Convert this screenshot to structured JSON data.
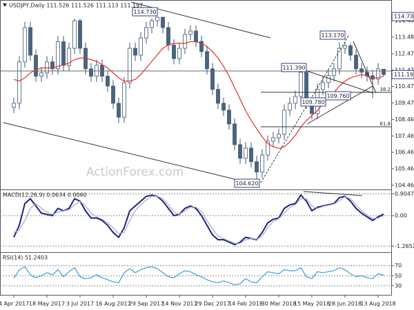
{
  "chart_data": [
    {
      "type": "candlestick",
      "title": "USDJPY,Daily 111.526 111.526 111.113 111.197",
      "categories": [
        "4 Apr 2017",
        null,
        null,
        null,
        null,
        null,
        "18 May 2017",
        null,
        null,
        null,
        null,
        null,
        "3 Jul 2017",
        null,
        null,
        null,
        null,
        null,
        "16 Aug 2017",
        null,
        null,
        null,
        null,
        null,
        "29 Sep 2017",
        null,
        null,
        null,
        null,
        null,
        "14 Nov 2017",
        null,
        null,
        null,
        null,
        null,
        "29 Dec 2017",
        null,
        null,
        null,
        null,
        null,
        "14 Feb 2018",
        null,
        null,
        null,
        null,
        null,
        "30 Mar 2018",
        null,
        null,
        null,
        null,
        null,
        "15 May 2018",
        null,
        null,
        null,
        null,
        null,
        "28 Jun 2018",
        null,
        null,
        null,
        null,
        null,
        "13 Aug 2018",
        null
      ],
      "open": [
        109.2,
        109.45,
        111.97,
        114.06,
        112.38,
        111.1,
        111.3,
        111.97,
        111.55,
        113.2,
        111.76,
        112.8,
        114.48,
        112.8,
        111.55,
        111.1,
        111.76,
        111.1,
        110.5,
        109.45,
        108.6,
        110.7,
        112.8,
        112.38,
        113.43,
        114.06,
        114.48,
        114.69,
        114.06,
        113.0,
        112.17,
        112.8,
        113.64,
        113.85,
        113.22,
        112.6,
        111.55,
        110.3,
        109.45,
        109.03,
        108.19,
        106.93,
        106.1,
        106.72,
        105.89,
        105.26,
        106.3,
        107.14,
        107.35,
        107.56,
        109.03,
        109.45,
        109.87,
        111.34,
        109.45,
        108.82,
        110.29,
        110.71,
        111.13,
        111.55,
        112.8,
        112.95,
        112.38,
        111.55,
        111.34,
        111.13,
        110.92,
        111.526
      ],
      "high": [
        109.8,
        112.32,
        114.41,
        114.41,
        112.73,
        111.65,
        112.32,
        112.32,
        113.55,
        113.55,
        113.15,
        114.6,
        114.6,
        113.15,
        111.9,
        112.11,
        112.11,
        111.45,
        110.85,
        109.8,
        111.05,
        113.15,
        113.15,
        113.78,
        114.41,
        114.6,
        114.73,
        114.7,
        114.41,
        113.35,
        113.15,
        113.99,
        114.2,
        114.2,
        113.57,
        112.95,
        111.9,
        110.65,
        109.8,
        109.38,
        108.54,
        107.28,
        107.07,
        107.07,
        106.24,
        106.65,
        107.49,
        107.7,
        107.91,
        109.38,
        109.8,
        110.22,
        111.39,
        111.39,
        109.8,
        110.64,
        111.06,
        111.48,
        111.9,
        113.15,
        113.17,
        113.1,
        112.73,
        111.9,
        111.69,
        111.48,
        111.9,
        111.526
      ],
      "low": [
        108.85,
        109.1,
        111.62,
        112.03,
        110.75,
        110.75,
        110.95,
        111.2,
        111.2,
        111.41,
        111.41,
        112.45,
        112.45,
        111.2,
        110.75,
        110.75,
        110.75,
        110.15,
        109.1,
        108.25,
        108.25,
        110.35,
        112.03,
        112.03,
        113.08,
        113.71,
        114.13,
        113.71,
        112.65,
        111.82,
        111.82,
        112.45,
        113.29,
        112.87,
        112.25,
        111.2,
        109.95,
        109.1,
        108.68,
        107.84,
        106.58,
        105.75,
        105.75,
        105.54,
        104.62,
        104.91,
        105.95,
        106.79,
        107.0,
        107.21,
        108.68,
        109.1,
        109.52,
        109.1,
        108.47,
        108.47,
        109.94,
        110.36,
        110.78,
        111.2,
        112.45,
        112.03,
        111.2,
        110.99,
        110.78,
        109.76,
        110.57,
        111.113
      ],
      "close": [
        109.45,
        111.97,
        114.06,
        112.38,
        111.1,
        111.3,
        111.97,
        111.55,
        113.2,
        111.76,
        112.8,
        114.48,
        112.8,
        111.55,
        111.1,
        111.76,
        111.1,
        110.5,
        109.45,
        108.6,
        110.7,
        112.8,
        112.38,
        113.43,
        114.06,
        114.48,
        114.69,
        114.06,
        113.0,
        112.17,
        112.8,
        113.64,
        113.85,
        113.22,
        112.6,
        111.55,
        110.3,
        109.45,
        109.03,
        108.19,
        106.93,
        106.1,
        106.72,
        105.89,
        105.26,
        106.3,
        107.14,
        107.35,
        107.56,
        109.03,
        109.45,
        109.87,
        111.34,
        109.45,
        108.82,
        110.29,
        110.71,
        111.13,
        111.55,
        112.8,
        112.95,
        112.38,
        111.55,
        111.34,
        111.13,
        110.92,
        111.55,
        111.197
      ],
      "up_color": "#ffffff",
      "down_color": "#4a6480",
      "candle_stroke": "#3d5670",
      "series": [
        {
          "color": "#e0302a",
          "values": [
            110.9,
            110.8,
            111.0,
            111.3,
            111.5,
            111.6,
            111.6,
            111.6,
            111.7,
            111.8,
            111.9,
            112.1,
            112.2,
            112.2,
            112.1,
            112.0,
            111.8,
            111.6,
            111.3,
            111.0,
            110.8,
            110.8,
            110.9,
            111.2,
            111.6,
            112.0,
            112.4,
            112.8,
            113.0,
            113.1,
            113.1,
            113.1,
            113.2,
            113.2,
            113.1,
            112.9,
            112.6,
            112.2,
            111.7,
            111.1,
            110.4,
            109.7,
            109.0,
            108.4,
            107.9,
            107.4,
            107.0,
            106.8,
            106.7,
            106.8,
            107.1,
            107.5,
            108.0,
            108.4,
            108.7,
            109.0,
            109.4,
            109.8,
            110.1,
            110.5,
            110.8,
            111.0,
            111.1,
            111.2,
            111.1,
            111.0,
            111.0,
            111.1
          ]
        }
      ],
      "ylim": [
        104.2,
        115.74
      ],
      "yticks": [
        {
          "value": 104.46,
          "label": "104.460"
        },
        {
          "value": 105.46,
          "label": "105.460"
        },
        {
          "value": 106.46,
          "label": "106.460"
        },
        {
          "value": 107.46,
          "label": "107.460"
        },
        {
          "value": 108.46,
          "label": "108.460"
        },
        {
          "value": 109.47,
          "label": "109.470"
        },
        {
          "value": 110.47,
          "label": "110.470"
        },
        {
          "value": 111.47,
          "label": "111.470"
        },
        {
          "value": 112.47,
          "label": "112.470"
        },
        {
          "value": 113.48,
          "label": "113.480"
        },
        {
          "value": 114.48,
          "label": "114.480"
        }
      ],
      "grid": false,
      "highlight_labels": [
        {
          "value": 114.73,
          "label": "114.730"
        },
        {
          "value": 111.197,
          "label": "111.197"
        }
      ],
      "annotations": [
        "114.730",
        "113.170",
        "111.390",
        "109.780",
        "109.760",
        "104.620",
        "38.2",
        "61.8"
      ],
      "watermark": "ActionForex.com"
    },
    {
      "type": "line",
      "title": "MACD(12,26,9) 0.0634 0.0060",
      "series": [
        {
          "color": "#1a237e",
          "values": [
            -0.9,
            -0.4,
            0.5,
            0.7,
            0.4,
            0.1,
            0.05,
            0.0,
            0.3,
            0.2,
            0.3,
            0.7,
            0.6,
            0.2,
            -0.1,
            -0.1,
            -0.2,
            -0.4,
            -0.7,
            -0.9,
            -0.5,
            0.2,
            0.4,
            0.6,
            0.8,
            0.85,
            0.8,
            0.6,
            0.3,
            0.0,
            0.05,
            0.3,
            0.4,
            0.3,
            0.0,
            -0.4,
            -0.8,
            -1.0,
            -1.0,
            -1.1,
            -1.2,
            -1.1,
            -0.9,
            -0.95,
            -1.0,
            -0.7,
            -0.3,
            -0.15,
            -0.1,
            0.3,
            0.45,
            0.5,
            0.85,
            0.6,
            0.2,
            0.35,
            0.4,
            0.45,
            0.5,
            0.75,
            0.8,
            0.6,
            0.3,
            0.1,
            -0.05,
            -0.2,
            -0.05,
            0.0634
          ]
        },
        {
          "color": "#a6a6c8",
          "values": [
            -0.7,
            -0.6,
            -0.2,
            0.3,
            0.5,
            0.3,
            0.15,
            0.05,
            0.15,
            0.2,
            0.25,
            0.45,
            0.6,
            0.4,
            0.1,
            -0.05,
            -0.15,
            -0.3,
            -0.5,
            -0.75,
            -0.7,
            -0.2,
            0.2,
            0.45,
            0.65,
            0.8,
            0.8,
            0.7,
            0.45,
            0.15,
            0.05,
            0.2,
            0.35,
            0.35,
            0.15,
            -0.2,
            -0.55,
            -0.85,
            -0.95,
            -1.05,
            -1.15,
            -1.15,
            -1.0,
            -0.95,
            -0.98,
            -0.85,
            -0.5,
            -0.25,
            -0.12,
            0.1,
            0.35,
            0.45,
            0.7,
            0.7,
            0.4,
            0.3,
            0.38,
            0.43,
            0.48,
            0.62,
            0.78,
            0.7,
            0.45,
            0.2,
            0.03,
            -0.12,
            -0.1,
            0.006
          ]
        }
      ],
      "ylim": [
        -1.514,
        1.086
      ],
      "yticks": [
        -1.2652,
        {
          "value": 0,
          "label": "0.00"
        },
        0.9047
      ],
      "grid": true
    },
    {
      "type": "line",
      "title": "RSI(14) 51.2403",
      "series": [
        {
          "color": "#3d9ad8",
          "values": [
            45,
            62,
            68,
            52,
            46,
            50,
            56,
            52,
            62,
            48,
            58,
            66,
            48,
            44,
            46,
            52,
            46,
            42,
            38,
            36,
            56,
            64,
            56,
            62,
            66,
            68,
            64,
            56,
            48,
            46,
            54,
            60,
            58,
            52,
            48,
            42,
            38,
            36,
            40,
            36,
            32,
            34,
            44,
            38,
            36,
            48,
            58,
            56,
            54,
            62,
            60,
            60,
            66,
            48,
            44,
            58,
            56,
            58,
            60,
            66,
            62,
            54,
            48,
            50,
            46,
            44,
            54,
            51.24
          ]
        }
      ],
      "ylim": [
        12,
        97
      ],
      "yticks": [
        30,
        50,
        70
      ],
      "grid": true
    }
  ]
}
